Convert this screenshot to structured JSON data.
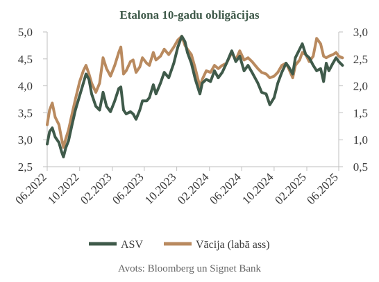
{
  "colors": {
    "background": "#ffffff",
    "asv": "#3f5a4a",
    "vacija": "#b98a5f",
    "text": "#3a3a3a",
    "title": "#3f5a4a",
    "source": "#666666",
    "axis_line": "#bfbfbf"
  },
  "chart_data": {
    "type": "line",
    "title": "Etalona 10-gadu obligācijas",
    "source": "Avots: Bloomberg un Signet Bank",
    "legend_position": "bottom",
    "grid": false,
    "x_ticks": [
      "06.2022",
      "10.2022",
      "02.2023",
      "06.2023",
      "10.2023",
      "02.2024",
      "06.2024",
      "10.2024",
      "02.2025",
      "06.2025"
    ],
    "x_range": [
      "2022-06",
      "2025-06"
    ],
    "y_left": {
      "ticks": [
        "2,5",
        "3,0",
        "3,5",
        "4,0",
        "4,5",
        "5,0"
      ],
      "range": [
        2.5,
        5.0
      ]
    },
    "y_right": {
      "ticks": [
        "0,5",
        "1,0",
        "1,5",
        "2,0",
        "2,5",
        "3,0"
      ],
      "range": [
        0.5,
        3.0
      ]
    },
    "series": [
      {
        "name": "ASV",
        "axis": "left",
        "color": "#3f5a4a",
        "points": [
          [
            "2022-06-01",
            2.92
          ],
          [
            "2022-06-10",
            3.15
          ],
          [
            "2022-06-20",
            3.22
          ],
          [
            "2022-07-01",
            3.05
          ],
          [
            "2022-07-15",
            2.95
          ],
          [
            "2022-07-25",
            2.78
          ],
          [
            "2022-08-01",
            2.68
          ],
          [
            "2022-08-10",
            2.85
          ],
          [
            "2022-08-20",
            2.98
          ],
          [
            "2022-09-01",
            3.25
          ],
          [
            "2022-09-15",
            3.55
          ],
          [
            "2022-10-01",
            3.82
          ],
          [
            "2022-10-15",
            4.05
          ],
          [
            "2022-10-25",
            4.22
          ],
          [
            "2022-11-05",
            4.12
          ],
          [
            "2022-11-15",
            3.85
          ],
          [
            "2022-12-01",
            3.62
          ],
          [
            "2022-12-15",
            3.55
          ],
          [
            "2022-12-28",
            3.88
          ],
          [
            "2023-01-10",
            3.62
          ],
          [
            "2023-01-25",
            3.52
          ],
          [
            "2023-02-10",
            3.72
          ],
          [
            "2023-02-25",
            3.95
          ],
          [
            "2023-03-05",
            3.98
          ],
          [
            "2023-03-15",
            3.55
          ],
          [
            "2023-03-25",
            3.48
          ],
          [
            "2023-04-10",
            3.52
          ],
          [
            "2023-04-20",
            3.48
          ],
          [
            "2023-05-01",
            3.38
          ],
          [
            "2023-05-15",
            3.55
          ],
          [
            "2023-05-25",
            3.72
          ],
          [
            "2023-06-10",
            3.72
          ],
          [
            "2023-06-20",
            3.78
          ],
          [
            "2023-07-05",
            4.02
          ],
          [
            "2023-07-15",
            3.85
          ],
          [
            "2023-08-01",
            4.05
          ],
          [
            "2023-08-15",
            4.25
          ],
          [
            "2023-09-01",
            4.15
          ],
          [
            "2023-09-20",
            4.42
          ],
          [
            "2023-10-05",
            4.72
          ],
          [
            "2023-10-20",
            4.92
          ],
          [
            "2023-11-01",
            4.82
          ],
          [
            "2023-11-10",
            4.62
          ],
          [
            "2023-11-25",
            4.42
          ],
          [
            "2023-12-10",
            4.12
          ],
          [
            "2023-12-27",
            3.85
          ],
          [
            "2024-01-05",
            4.05
          ],
          [
            "2024-01-20",
            4.12
          ],
          [
            "2024-02-05",
            4.08
          ],
          [
            "2024-02-20",
            4.28
          ],
          [
            "2024-03-05",
            4.15
          ],
          [
            "2024-03-20",
            4.25
          ],
          [
            "2024-04-05",
            4.42
          ],
          [
            "2024-04-25",
            4.65
          ],
          [
            "2024-05-10",
            4.45
          ],
          [
            "2024-05-25",
            4.55
          ],
          [
            "2024-06-10",
            4.28
          ],
          [
            "2024-06-25",
            4.38
          ],
          [
            "2024-07-10",
            4.25
          ],
          [
            "2024-08-01",
            4.05
          ],
          [
            "2024-08-15",
            3.88
          ],
          [
            "2024-09-01",
            3.85
          ],
          [
            "2024-09-15",
            3.65
          ],
          [
            "2024-10-01",
            3.78
          ],
          [
            "2024-10-15",
            4.05
          ],
          [
            "2024-10-30",
            4.25
          ],
          [
            "2024-11-15",
            4.42
          ],
          [
            "2024-11-25",
            4.35
          ],
          [
            "2024-12-10",
            4.22
          ],
          [
            "2024-12-20",
            4.52
          ],
          [
            "2025-01-05",
            4.68
          ],
          [
            "2025-01-15",
            4.78
          ],
          [
            "2025-01-28",
            4.58
          ],
          [
            "2025-02-10",
            4.52
          ],
          [
            "2025-02-25",
            4.38
          ],
          [
            "2025-03-10",
            4.28
          ],
          [
            "2025-03-25",
            4.32
          ],
          [
            "2025-04-05",
            4.08
          ],
          [
            "2025-04-15",
            4.42
          ],
          [
            "2025-04-25",
            4.28
          ],
          [
            "2025-05-10",
            4.42
          ],
          [
            "2025-05-22",
            4.52
          ],
          [
            "2025-06-01",
            4.45
          ],
          [
            "2025-06-15",
            4.38
          ]
        ]
      },
      {
        "name": "Vācija (labā ass)",
        "axis": "right",
        "color": "#b98a5f",
        "points": [
          [
            "2022-06-01",
            1.28
          ],
          [
            "2022-06-10",
            1.55
          ],
          [
            "2022-06-20",
            1.68
          ],
          [
            "2022-07-01",
            1.42
          ],
          [
            "2022-07-15",
            1.28
          ],
          [
            "2022-07-25",
            1.02
          ],
          [
            "2022-08-01",
            0.86
          ],
          [
            "2022-08-10",
            1.02
          ],
          [
            "2022-08-20",
            1.18
          ],
          [
            "2022-09-01",
            1.45
          ],
          [
            "2022-09-15",
            1.75
          ],
          [
            "2022-10-01",
            2.08
          ],
          [
            "2022-10-15",
            2.28
          ],
          [
            "2022-10-25",
            2.38
          ],
          [
            "2022-11-05",
            2.22
          ],
          [
            "2022-11-15",
            2.05
          ],
          [
            "2022-12-01",
            1.88
          ],
          [
            "2022-12-15",
            2.05
          ],
          [
            "2022-12-28",
            2.52
          ],
          [
            "2023-01-10",
            2.32
          ],
          [
            "2023-01-25",
            2.18
          ],
          [
            "2023-02-10",
            2.38
          ],
          [
            "2023-02-25",
            2.62
          ],
          [
            "2023-03-05",
            2.72
          ],
          [
            "2023-03-15",
            2.22
          ],
          [
            "2023-03-25",
            2.28
          ],
          [
            "2023-04-10",
            2.45
          ],
          [
            "2023-04-20",
            2.48
          ],
          [
            "2023-05-01",
            2.25
          ],
          [
            "2023-05-15",
            2.35
          ],
          [
            "2023-05-25",
            2.52
          ],
          [
            "2023-06-10",
            2.42
          ],
          [
            "2023-06-20",
            2.38
          ],
          [
            "2023-07-05",
            2.62
          ],
          [
            "2023-07-15",
            2.48
          ],
          [
            "2023-08-01",
            2.55
          ],
          [
            "2023-08-15",
            2.68
          ],
          [
            "2023-09-01",
            2.58
          ],
          [
            "2023-09-20",
            2.72
          ],
          [
            "2023-10-05",
            2.85
          ],
          [
            "2023-10-20",
            2.92
          ],
          [
            "2023-11-01",
            2.75
          ],
          [
            "2023-11-10",
            2.68
          ],
          [
            "2023-11-25",
            2.58
          ],
          [
            "2023-12-10",
            2.32
          ],
          [
            "2023-12-27",
            1.98
          ],
          [
            "2024-01-05",
            2.12
          ],
          [
            "2024-01-20",
            2.28
          ],
          [
            "2024-02-05",
            2.25
          ],
          [
            "2024-02-20",
            2.38
          ],
          [
            "2024-03-05",
            2.32
          ],
          [
            "2024-03-20",
            2.38
          ],
          [
            "2024-04-05",
            2.42
          ],
          [
            "2024-04-25",
            2.62
          ],
          [
            "2024-05-10",
            2.48
          ],
          [
            "2024-05-25",
            2.65
          ],
          [
            "2024-06-10",
            2.48
          ],
          [
            "2024-06-25",
            2.52
          ],
          [
            "2024-07-10",
            2.45
          ],
          [
            "2024-08-01",
            2.32
          ],
          [
            "2024-08-15",
            2.25
          ],
          [
            "2024-09-01",
            2.22
          ],
          [
            "2024-09-15",
            2.15
          ],
          [
            "2024-10-01",
            2.18
          ],
          [
            "2024-10-15",
            2.25
          ],
          [
            "2024-10-30",
            2.38
          ],
          [
            "2024-11-15",
            2.42
          ],
          [
            "2024-11-25",
            2.32
          ],
          [
            "2024-12-10",
            2.15
          ],
          [
            "2024-12-20",
            2.38
          ],
          [
            "2025-01-05",
            2.48
          ],
          [
            "2025-01-15",
            2.62
          ],
          [
            "2025-01-28",
            2.58
          ],
          [
            "2025-02-10",
            2.45
          ],
          [
            "2025-02-25",
            2.55
          ],
          [
            "2025-03-10",
            2.88
          ],
          [
            "2025-03-25",
            2.78
          ],
          [
            "2025-04-05",
            2.55
          ],
          [
            "2025-04-15",
            2.52
          ],
          [
            "2025-04-25",
            2.55
          ],
          [
            "2025-05-10",
            2.58
          ],
          [
            "2025-05-22",
            2.62
          ],
          [
            "2025-06-01",
            2.55
          ],
          [
            "2025-06-15",
            2.52
          ]
        ]
      }
    ]
  }
}
